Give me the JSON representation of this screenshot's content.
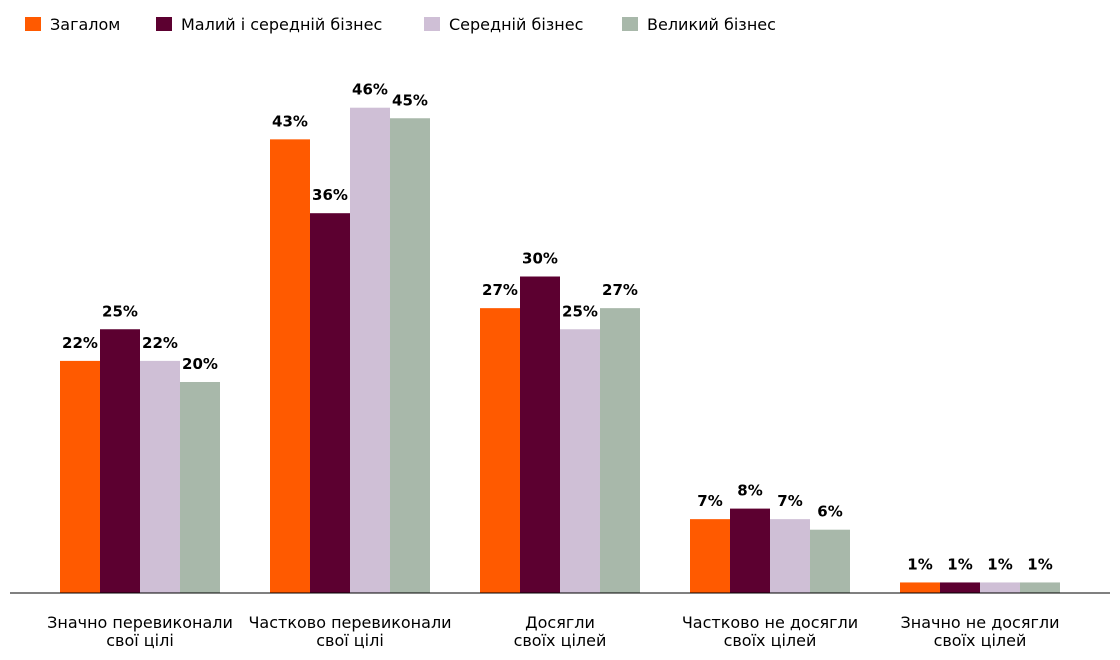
{
  "chart_data": {
    "type": "bar",
    "title": "",
    "xlabel": "",
    "ylabel": "",
    "ylim": [
      0,
      48
    ],
    "grid": false,
    "legend_position": "top-left",
    "value_suffix": "%",
    "categories": [
      [
        "Значно перевиконали",
        "свої цілі"
      ],
      [
        "Частково перевиконали",
        "свої цілі"
      ],
      [
        "Досягли",
        "своїх цілей"
      ],
      [
        "Частково не досягли",
        "своїх цілей"
      ],
      [
        "Значно не досягли",
        "своїх цілей"
      ]
    ],
    "series": [
      {
        "name": "Загалом",
        "color": "#ff5a00",
        "values": [
          22,
          43,
          27,
          7,
          1
        ]
      },
      {
        "name": "Малий і середній бізнес",
        "color": "#5c0030",
        "values": [
          25,
          36,
          30,
          8,
          1
        ]
      },
      {
        "name": "Середній бізнес",
        "color": "#cfbfd6",
        "values": [
          22,
          46,
          25,
          7,
          1
        ]
      },
      {
        "name": "Великий бізнес",
        "color": "#a8b8aa",
        "values": [
          20,
          45,
          27,
          6,
          1
        ]
      }
    ]
  }
}
